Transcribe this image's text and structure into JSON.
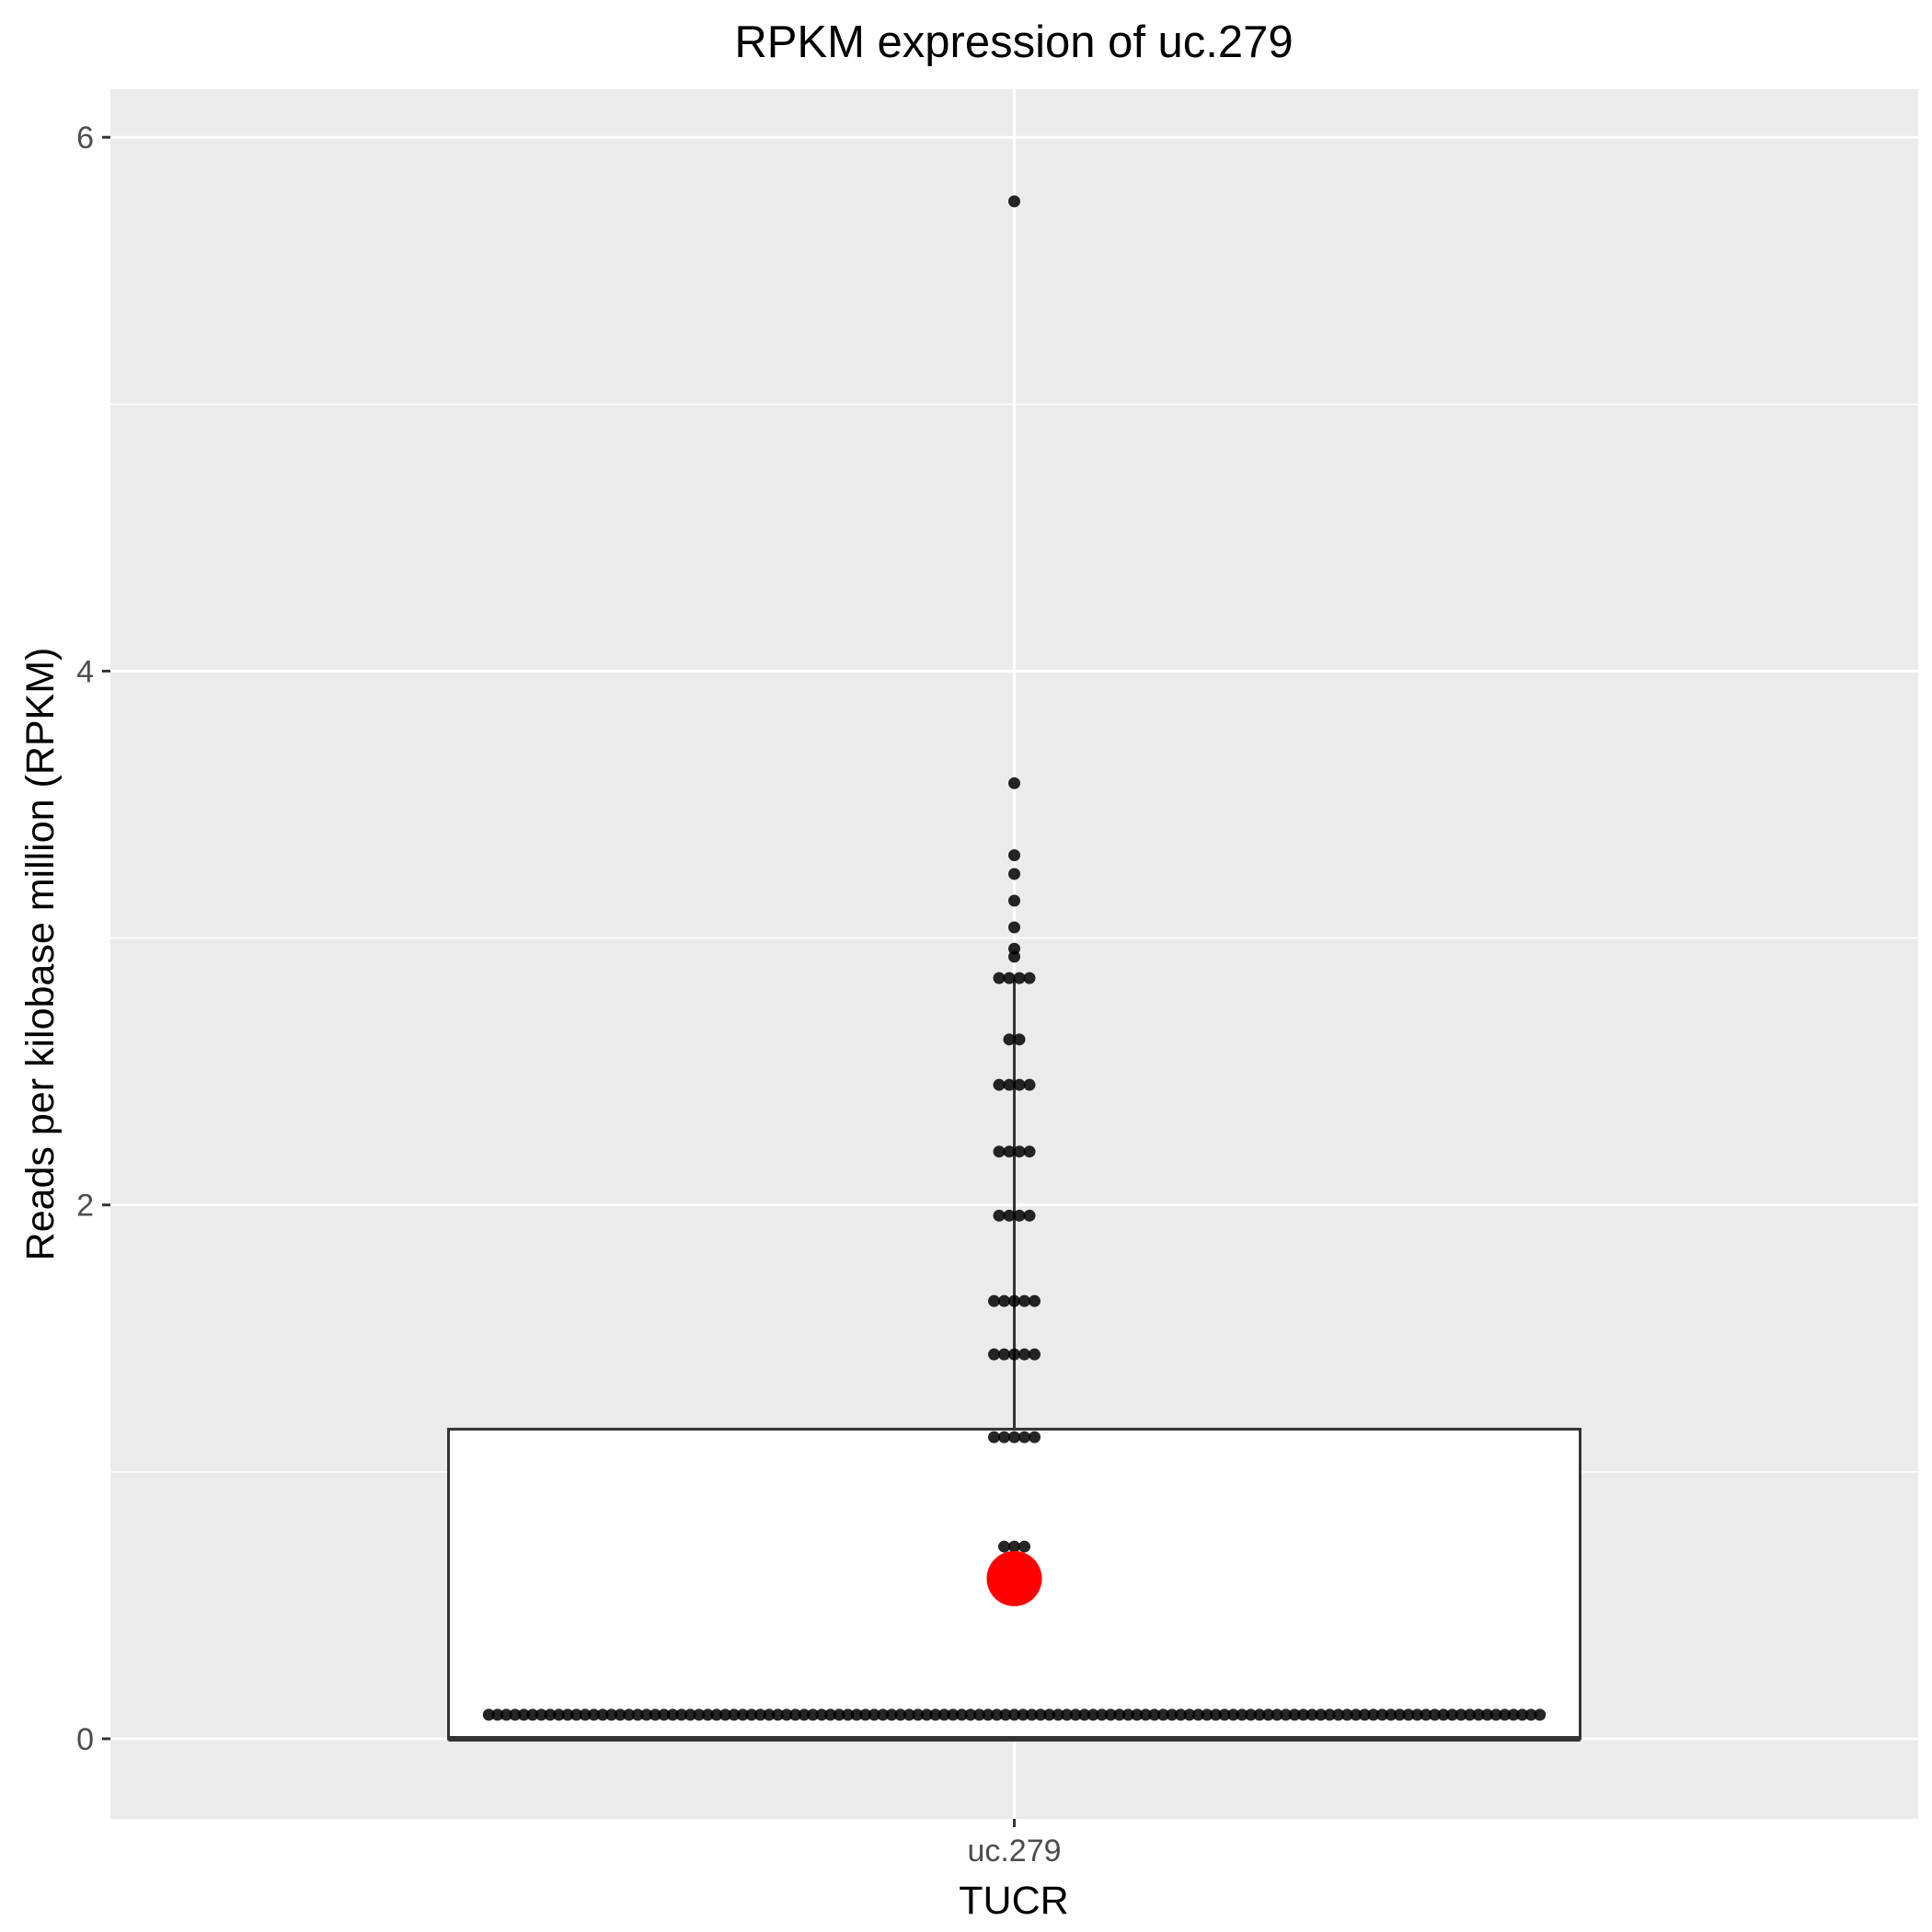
{
  "chart_data": {
    "type": "box",
    "title": "RPKM expression of  uc.279",
    "xlabel": "TUCR",
    "ylabel": "Reads per kilobase million (RPKM)",
    "categories": [
      "uc.279"
    ],
    "ylim": [
      -0.3,
      6.18
    ],
    "y_ticks": [
      0,
      2,
      4,
      6
    ],
    "y_tick_labels": [
      "0",
      "2",
      "4",
      "6"
    ],
    "grid": true,
    "legend": "none",
    "box": {
      "category": "uc.279",
      "min": 0,
      "q1": 0,
      "median": 0,
      "q3": 1.16,
      "whisker_low": 0,
      "whisker_high": 2.85,
      "mean": 0.6
    },
    "points": [
      {
        "y": 0.09,
        "count": 121
      },
      {
        "y": 0.72,
        "count": 3
      },
      {
        "y": 1.13,
        "count": 5
      },
      {
        "y": 1.44,
        "count": 5
      },
      {
        "y": 1.64,
        "count": 5
      },
      {
        "y": 1.96,
        "count": 4
      },
      {
        "y": 2.2,
        "count": 4
      },
      {
        "y": 2.45,
        "count": 4
      },
      {
        "y": 2.62,
        "count": 2
      },
      {
        "y": 2.85,
        "count": 4
      },
      {
        "y": 2.93,
        "count": 1
      },
      {
        "y": 2.96,
        "count": 1
      },
      {
        "y": 3.04,
        "count": 1
      },
      {
        "y": 3.14,
        "count": 1
      },
      {
        "y": 3.24,
        "count": 1
      },
      {
        "y": 3.31,
        "count": 1
      },
      {
        "y": 3.58,
        "count": 1
      },
      {
        "y": 5.76,
        "count": 1
      }
    ],
    "colors": {
      "panel": "#ebebeb",
      "grid": "#ffffff",
      "box_fill": "#ffffff",
      "box_line": "#333333",
      "point": "#000000",
      "mean_point": "#ff0000",
      "tick_label": "#4d4d4d"
    }
  }
}
